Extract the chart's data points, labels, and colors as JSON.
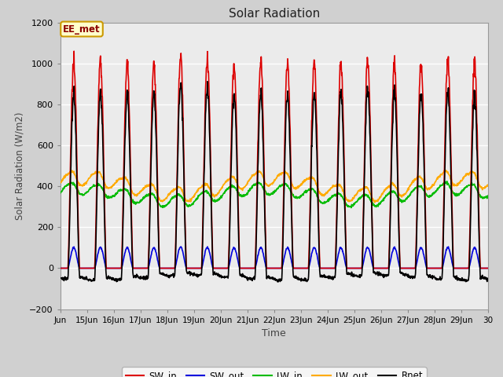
{
  "title": "Solar Radiation",
  "xlabel": "Time",
  "ylabel": "Solar Radiation (W/m2)",
  "ylim": [
    -200,
    1200
  ],
  "xlim_days": [
    14,
    30
  ],
  "tick_labels": [
    "Jun",
    "15Jun",
    "16Jun",
    "17Jun",
    "18Jun",
    "19Jun",
    "20Jun",
    "21Jun",
    "22Jun",
    "23Jun",
    "24Jun",
    "25Jun",
    "26Jun",
    "27Jun",
    "28Jun",
    "29Jun",
    "30"
  ],
  "annotation_text": "EE_met",
  "annotation_bg": "#ffffcc",
  "annotation_border": "#cc9900",
  "fig_bg_color": "#d0d0d0",
  "plot_bg": "#ebebeb",
  "grid_color": "#ffffff",
  "series": {
    "SW_in": {
      "color": "#dd0000",
      "lw": 1.2
    },
    "SW_out": {
      "color": "#0000dd",
      "lw": 1.2
    },
    "LW_in": {
      "color": "#00bb00",
      "lw": 1.2
    },
    "LW_out": {
      "color": "#ffaa00",
      "lw": 1.2
    },
    "Rnet": {
      "color": "#000000",
      "lw": 1.2
    }
  },
  "n_days": 16,
  "dt_hours": 0.25,
  "day_start": 14
}
